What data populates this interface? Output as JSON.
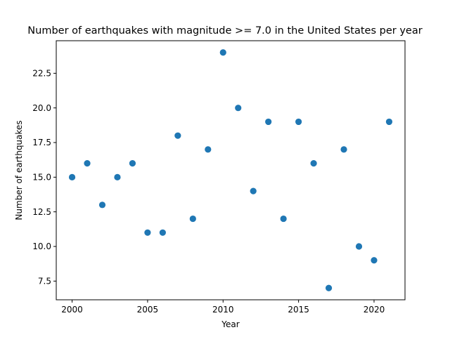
{
  "chart_data": {
    "type": "scatter",
    "title": "Number of earthquakes with magnitude >= 7.0 in the United States per year",
    "xlabel": "Year",
    "ylabel": "Number of earthquakes",
    "x": [
      2000,
      2001,
      2002,
      2003,
      2004,
      2005,
      2006,
      2007,
      2008,
      2009,
      2010,
      2011,
      2012,
      2013,
      2014,
      2015,
      2016,
      2017,
      2018,
      2019,
      2020,
      2021
    ],
    "y": [
      15,
      16,
      13,
      15,
      16,
      11,
      11,
      18,
      12,
      17,
      24,
      20,
      14,
      19,
      12,
      19,
      16,
      7,
      17,
      10,
      9,
      19
    ],
    "xlim": [
      1998.95,
      2022.05
    ],
    "ylim": [
      6.15,
      24.85
    ],
    "xticks": [
      2000,
      2005,
      2010,
      2015,
      2020
    ],
    "xtick_labels": [
      "2000",
      "2005",
      "2010",
      "2015",
      "2020"
    ],
    "yticks": [
      7.5,
      10.0,
      12.5,
      15.0,
      17.5,
      20.0,
      22.5
    ],
    "ytick_labels": [
      "7.5",
      "10.0",
      "12.5",
      "15.0",
      "17.5",
      "20.0",
      "22.5"
    ],
    "grid": false,
    "marker_color": "#1f77b4"
  }
}
